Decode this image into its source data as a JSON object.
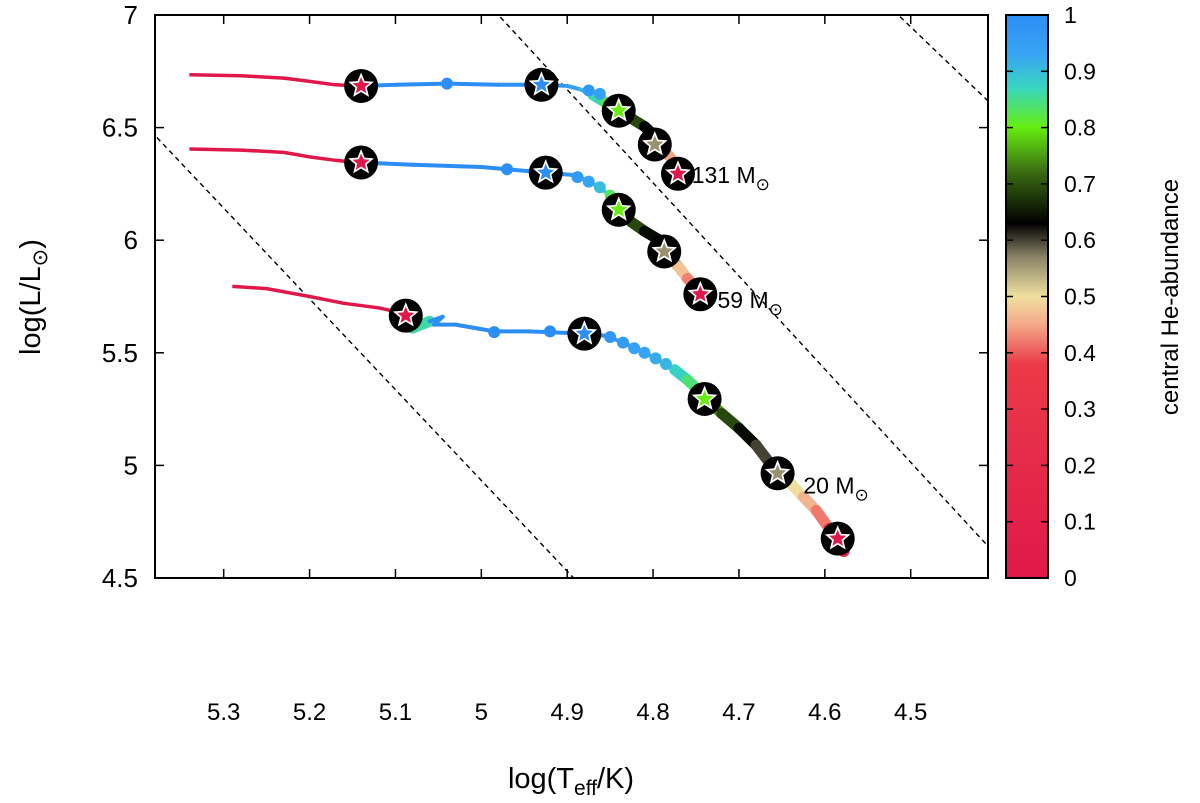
{
  "chart_data": {
    "type": "scatter",
    "title": "",
    "xlabel": {
      "main": "log(T",
      "sub": "eff",
      "tail": "/K)"
    },
    "ylabel": {
      "main": "log(L/L",
      "sub": "⊙",
      "tail": ")"
    },
    "xlim": [
      5.38,
      4.41
    ],
    "ylim": [
      4.5,
      7.0
    ],
    "x_inverted": true,
    "xticks": [
      5.3,
      5.2,
      5.1,
      5.0,
      4.9,
      4.8,
      4.7,
      4.6,
      4.5
    ],
    "xtick_labels": [
      "5.3",
      "5.2",
      "5.1",
      "5",
      "4.9",
      "4.8",
      "4.7",
      "4.6",
      "4.5"
    ],
    "yticks": [
      4.5,
      5.0,
      5.5,
      6.0,
      6.5,
      7.0
    ],
    "ytick_labels": [
      "4.5",
      "5",
      "5.5",
      "6",
      "6.5",
      "7"
    ],
    "grid": false,
    "colorbar": {
      "label": "central He-abundance",
      "range": [
        0,
        1
      ],
      "ticks": [
        0,
        0.1,
        0.2,
        0.3,
        0.4,
        0.5,
        0.6,
        0.7,
        0.8,
        0.9,
        1.0
      ],
      "tick_labels": [
        "0",
        "0.1",
        "0.2",
        "0.3",
        "0.4",
        "0.5",
        "0.6",
        "0.7",
        "0.8",
        "0.9",
        "1"
      ],
      "palette": [
        {
          "v": 0.0,
          "c": "#e0184a"
        },
        {
          "v": 0.38,
          "c": "#ea3a48"
        },
        {
          "v": 0.45,
          "c": "#f4a88a"
        },
        {
          "v": 0.5,
          "c": "#f0e0a0"
        },
        {
          "v": 0.57,
          "c": "#8a8468"
        },
        {
          "v": 0.63,
          "c": "#000000"
        },
        {
          "v": 0.72,
          "c": "#3a6a12"
        },
        {
          "v": 0.8,
          "c": "#66ee10"
        },
        {
          "v": 0.87,
          "c": "#38d6c0"
        },
        {
          "v": 0.93,
          "c": "#38a4f4"
        },
        {
          "v": 1.0,
          "c": "#2c8ef4"
        }
      ]
    },
    "reference_lines": [
      {
        "name": "line-left",
        "from": [
          5.385,
          6.485
        ],
        "to": [
          4.89,
          4.49
        ]
      },
      {
        "name": "line-middle",
        "from": [
          4.985,
          7.02
        ],
        "to": [
          4.4,
          4.6
        ]
      },
      {
        "name": "line-right",
        "from": [
          4.52,
          7.02
        ],
        "to": [
          4.405,
          6.6
        ]
      }
    ],
    "series": [
      {
        "name": "131 M⊙",
        "label": {
          "text": "131 M",
          "sym": "⊙",
          "x": 4.755,
          "y": 6.29
        },
        "pre_track": {
          "color": "#e0184a",
          "points": [
            [
              5.34,
              6.735
            ],
            [
              5.28,
              6.73
            ],
            [
              5.23,
              6.72
            ],
            [
              5.2,
              6.705
            ],
            [
              5.17,
              6.69
            ],
            [
              5.145,
              6.685
            ]
          ]
        },
        "track": [
          {
            "x": 5.14,
            "y": 6.685,
            "he": 1.0
          },
          {
            "x": 5.1,
            "y": 6.69,
            "he": 1.0
          },
          {
            "x": 5.04,
            "y": 6.695,
            "he": 1.0
          },
          {
            "x": 4.98,
            "y": 6.69,
            "he": 1.0
          },
          {
            "x": 4.935,
            "y": 6.69,
            "he": 0.99
          },
          {
            "x": 4.9,
            "y": 6.685,
            "he": 0.96
          },
          {
            "x": 4.885,
            "y": 6.67,
            "he": 0.93
          },
          {
            "x": 4.87,
            "y": 6.645,
            "he": 0.89
          },
          {
            "x": 4.855,
            "y": 6.61,
            "he": 0.84
          },
          {
            "x": 4.84,
            "y": 6.575,
            "he": 0.8
          },
          {
            "x": 4.825,
            "y": 6.54,
            "he": 0.72
          },
          {
            "x": 4.81,
            "y": 6.505,
            "he": 0.66
          },
          {
            "x": 4.8,
            "y": 6.47,
            "he": 0.6
          },
          {
            "x": 4.793,
            "y": 6.43,
            "he": 0.55
          },
          {
            "x": 4.785,
            "y": 6.39,
            "he": 0.48
          },
          {
            "x": 4.775,
            "y": 6.345,
            "he": 0.42
          },
          {
            "x": 4.766,
            "y": 6.29,
            "he": 0.2
          }
        ],
        "dots": [
          [
            5.04,
            6.695,
            1.0
          ],
          [
            4.875,
            6.665,
            0.97
          ],
          [
            4.862,
            6.65,
            0.94
          ]
        ],
        "stars": [
          {
            "x": 5.14,
            "y": 6.685,
            "he": 0.0
          },
          {
            "x": 4.93,
            "y": 6.69,
            "he": 1.0
          },
          {
            "x": 4.84,
            "y": 6.575,
            "he": 0.8
          },
          {
            "x": 4.798,
            "y": 6.425,
            "he": 0.56
          },
          {
            "x": 4.771,
            "y": 6.295,
            "he": 0.0
          }
        ]
      },
      {
        "name": "59 M⊙",
        "label": {
          "text": "59 M",
          "sym": "⊙",
          "x": 4.725,
          "y": 5.735
        },
        "pre_track": {
          "color": "#e0184a",
          "points": [
            [
              5.34,
              6.405
            ],
            [
              5.28,
              6.4
            ],
            [
              5.23,
              6.39
            ],
            [
              5.2,
              6.37
            ],
            [
              5.17,
              6.355
            ],
            [
              5.145,
              6.345
            ]
          ]
        },
        "track": [
          {
            "x": 5.14,
            "y": 6.345,
            "he": 1.0
          },
          {
            "x": 5.08,
            "y": 6.335,
            "he": 1.0
          },
          {
            "x": 5.0,
            "y": 6.325,
            "he": 1.0
          },
          {
            "x": 4.97,
            "y": 6.315,
            "he": 1.0
          },
          {
            "x": 4.925,
            "y": 6.3,
            "he": 0.99
          },
          {
            "x": 4.895,
            "y": 6.29,
            "he": 0.97
          },
          {
            "x": 4.88,
            "y": 6.27,
            "he": 0.94
          },
          {
            "x": 4.865,
            "y": 6.24,
            "he": 0.9
          },
          {
            "x": 4.85,
            "y": 6.2,
            "he": 0.86
          },
          {
            "x": 4.84,
            "y": 6.135,
            "he": 0.8
          },
          {
            "x": 4.825,
            "y": 6.08,
            "he": 0.72
          },
          {
            "x": 4.81,
            "y": 6.04,
            "he": 0.66
          },
          {
            "x": 4.79,
            "y": 5.995,
            "he": 0.62
          },
          {
            "x": 4.783,
            "y": 5.94,
            "he": 0.56
          },
          {
            "x": 4.77,
            "y": 5.88,
            "he": 0.5
          },
          {
            "x": 4.76,
            "y": 5.83,
            "he": 0.45
          },
          {
            "x": 4.745,
            "y": 5.77,
            "he": 0.4
          },
          {
            "x": 4.74,
            "y": 5.72,
            "he": 0.1
          }
        ],
        "dots": [
          [
            4.97,
            6.315,
            1.0
          ],
          [
            4.888,
            6.28,
            0.96
          ],
          [
            4.875,
            6.26,
            0.93
          ],
          [
            4.862,
            6.235,
            0.9
          ]
        ],
        "stars": [
          {
            "x": 5.14,
            "y": 6.345,
            "he": 0.0
          },
          {
            "x": 4.925,
            "y": 6.3,
            "he": 1.0
          },
          {
            "x": 4.84,
            "y": 6.135,
            "he": 0.8
          },
          {
            "x": 4.787,
            "y": 5.95,
            "he": 0.56
          },
          {
            "x": 4.745,
            "y": 5.76,
            "he": 0.0
          }
        ]
      },
      {
        "name": "20 M⊙",
        "label": {
          "text": "20 M",
          "sym": "⊙",
          "x": 4.625,
          "y": 4.91
        },
        "pre_track": {
          "color": "#e0184a",
          "points": [
            [
              5.29,
              5.795
            ],
            [
              5.25,
              5.785
            ],
            [
              5.2,
              5.75
            ],
            [
              5.16,
              5.72
            ],
            [
              5.12,
              5.7
            ],
            [
              5.09,
              5.675
            ]
          ]
        },
        "track": [
          {
            "x": 5.085,
            "y": 5.675,
            "he": 0.0
          },
          {
            "x": 5.08,
            "y": 5.61,
            "he": 0.72
          },
          {
            "x": 5.06,
            "y": 5.64,
            "he": 1.0
          },
          {
            "x": 5.045,
            "y": 5.66,
            "he": 1.0
          },
          {
            "x": 5.055,
            "y": 5.625,
            "he": 1.0
          },
          {
            "x": 5.03,
            "y": 5.625,
            "he": 1.0
          },
          {
            "x": 4.985,
            "y": 5.595,
            "he": 1.0
          },
          {
            "x": 4.945,
            "y": 5.595,
            "he": 1.0
          },
          {
            "x": 4.88,
            "y": 5.585,
            "he": 1.0
          },
          {
            "x": 4.855,
            "y": 5.575,
            "he": 0.97
          },
          {
            "x": 4.835,
            "y": 5.545,
            "he": 0.95
          },
          {
            "x": 4.815,
            "y": 5.51,
            "he": 0.93
          },
          {
            "x": 4.795,
            "y": 5.47,
            "he": 0.91
          },
          {
            "x": 4.775,
            "y": 5.425,
            "he": 0.89
          },
          {
            "x": 4.76,
            "y": 5.38,
            "he": 0.86
          },
          {
            "x": 4.745,
            "y": 5.325,
            "he": 0.82
          },
          {
            "x": 4.735,
            "y": 5.285,
            "he": 0.78
          },
          {
            "x": 4.72,
            "y": 5.23,
            "he": 0.72
          },
          {
            "x": 4.7,
            "y": 5.165,
            "he": 0.66
          },
          {
            "x": 4.68,
            "y": 5.09,
            "he": 0.62
          },
          {
            "x": 4.66,
            "y": 4.99,
            "he": 0.58
          },
          {
            "x": 4.64,
            "y": 4.92,
            "he": 0.52
          },
          {
            "x": 4.625,
            "y": 4.86,
            "he": 0.48
          },
          {
            "x": 4.61,
            "y": 4.8,
            "he": 0.44
          },
          {
            "x": 4.595,
            "y": 4.72,
            "he": 0.4
          },
          {
            "x": 4.578,
            "y": 4.62,
            "he": 0.1
          }
        ],
        "dots": [
          [
            4.985,
            5.592,
            1.0
          ],
          [
            4.92,
            5.595,
            1.0
          ],
          [
            4.85,
            5.57,
            0.97
          ],
          [
            4.835,
            5.545,
            0.96
          ],
          [
            4.822,
            5.52,
            0.94
          ],
          [
            4.81,
            5.5,
            0.93
          ],
          [
            4.797,
            5.475,
            0.92
          ],
          [
            4.785,
            5.45,
            0.91
          ]
        ],
        "stars": [
          {
            "x": 5.088,
            "y": 5.665,
            "he": 0.0
          },
          {
            "x": 4.88,
            "y": 5.585,
            "he": 1.0
          },
          {
            "x": 4.74,
            "y": 5.295,
            "he": 0.8
          },
          {
            "x": 4.655,
            "y": 4.965,
            "he": 0.56
          },
          {
            "x": 4.585,
            "y": 4.675,
            "he": 0.0
          }
        ]
      }
    ]
  }
}
